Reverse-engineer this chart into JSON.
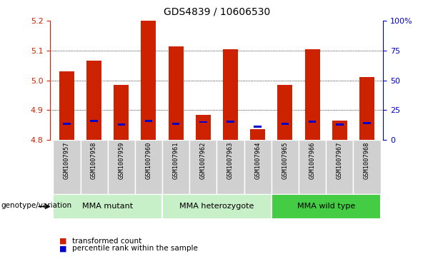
{
  "title": "GDS4839 / 10606530",
  "samples": [
    "GSM1007957",
    "GSM1007958",
    "GSM1007959",
    "GSM1007960",
    "GSM1007961",
    "GSM1007962",
    "GSM1007963",
    "GSM1007964",
    "GSM1007965",
    "GSM1007966",
    "GSM1007967",
    "GSM1007968"
  ],
  "red_values": [
    5.03,
    5.065,
    4.985,
    5.2,
    5.115,
    4.885,
    5.105,
    4.835,
    4.985,
    5.105,
    4.865,
    5.01
  ],
  "blue_values": [
    4.855,
    4.863,
    4.852,
    4.863,
    4.854,
    4.86,
    4.862,
    4.845,
    4.855,
    4.862,
    4.852,
    4.856
  ],
  "ymin": 4.8,
  "ymax": 5.2,
  "yticks_left": [
    4.8,
    4.9,
    5.0,
    5.1,
    5.2
  ],
  "yticks_right": [
    0,
    25,
    50,
    75,
    100
  ],
  "ytick_labels_right": [
    "0",
    "25",
    "50",
    "75",
    "100%"
  ],
  "group_boundaries": [
    {
      "start": 0,
      "end": 3,
      "label": "MMA mutant",
      "color": "#c8f0c8"
    },
    {
      "start": 4,
      "end": 7,
      "label": "MMA heterozygote",
      "color": "#c8f0c8"
    },
    {
      "start": 8,
      "end": 11,
      "label": "MMA wild type",
      "color": "#44cc44"
    }
  ],
  "bar_color": "#cc2200",
  "blue_color": "#0000cc",
  "bar_width": 0.55,
  "plot_bg": "#ffffff",
  "cell_bg": "#d0d0d0",
  "cell_border": "#ffffff",
  "left_axis_color": "#cc2200",
  "right_axis_color": "#0000cc",
  "genotype_label": "genotype/variation",
  "legend_red": "transformed count",
  "legend_blue": "percentile rank within the sample",
  "grid_lines": [
    4.9,
    5.0,
    5.1
  ],
  "dotgrid_color": "#555555"
}
